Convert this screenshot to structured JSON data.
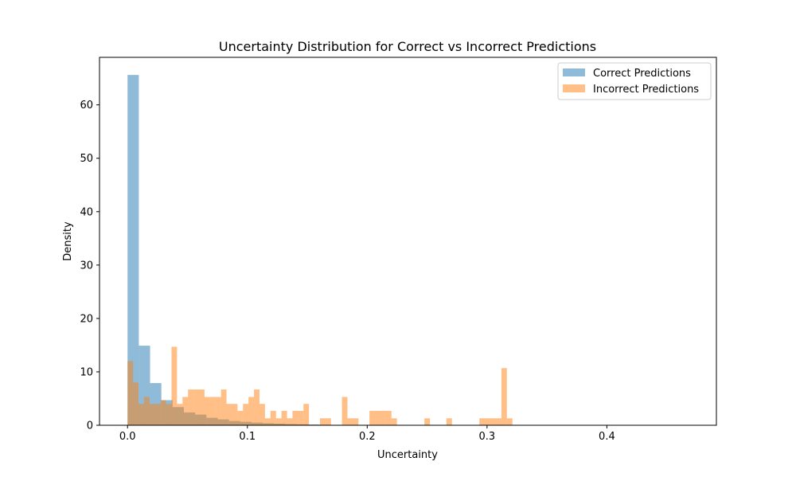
{
  "chart_data": {
    "type": "bar",
    "title": "Uncertainty Distribution for Correct vs Incorrect Predictions",
    "xlabel": "Uncertainty",
    "ylabel": "Density",
    "xlim": [
      -0.0234,
      0.4914
    ],
    "ylim": [
      0,
      68.9
    ],
    "xticks": [
      0.0,
      0.1,
      0.2,
      0.3,
      0.4
    ],
    "xtick_labels": [
      "0.0",
      "0.1",
      "0.2",
      "0.3",
      "0.4"
    ],
    "yticks": [
      0,
      10,
      20,
      30,
      40,
      50,
      60
    ],
    "ytick_labels": [
      "0",
      "10",
      "20",
      "30",
      "40",
      "50",
      "60"
    ],
    "grid": false,
    "legend_position": "top-right",
    "series": [
      {
        "name": "Correct Predictions",
        "color": "#1f77b4",
        "opacity": 0.5,
        "bin_start": 0.0,
        "bin_width": 0.0094,
        "values": [
          65.6,
          14.9,
          7.9,
          4.7,
          3.4,
          2.4,
          2.0,
          1.4,
          1.1,
          0.8,
          0.65,
          0.5,
          0.38,
          0.3,
          0.22,
          0.18,
          0.14,
          0.1,
          0.08,
          0.06,
          0.05,
          0.04,
          0.03,
          0.02,
          0.02,
          0.015,
          0.01,
          0.01,
          0.01,
          0.005,
          0.005,
          0.005,
          0.005,
          0.005,
          0.005,
          0.005,
          0.005,
          0.005,
          0.005,
          0.005,
          0.005,
          0.005,
          0.005,
          0.005,
          0.005,
          0.005,
          0.005,
          0.005,
          0.005,
          0.005
        ]
      },
      {
        "name": "Incorrect Predictions",
        "color": "#ff7f0e",
        "opacity": 0.5,
        "bin_start": 0.0,
        "bin_width": 0.004588,
        "values": [
          12.0,
          8.0,
          4.0,
          5.3,
          4.0,
          4.0,
          4.7,
          4.0,
          14.7,
          4.0,
          5.3,
          6.7,
          6.7,
          6.7,
          5.3,
          5.3,
          5.3,
          6.7,
          4.0,
          4.0,
          2.7,
          4.0,
          5.3,
          6.7,
          4.0,
          1.3,
          2.7,
          1.3,
          2.7,
          1.3,
          2.7,
          2.7,
          4.0,
          0,
          0,
          1.3,
          1.3,
          0,
          0,
          5.3,
          1.3,
          1.3,
          0,
          0,
          2.7,
          2.7,
          2.7,
          2.7,
          1.3,
          0,
          0,
          0,
          0,
          0,
          1.3,
          0,
          0,
          0,
          1.3,
          0,
          0,
          0,
          0,
          0,
          1.3,
          1.3,
          1.3,
          1.3,
          10.7,
          1.3
        ]
      }
    ]
  }
}
